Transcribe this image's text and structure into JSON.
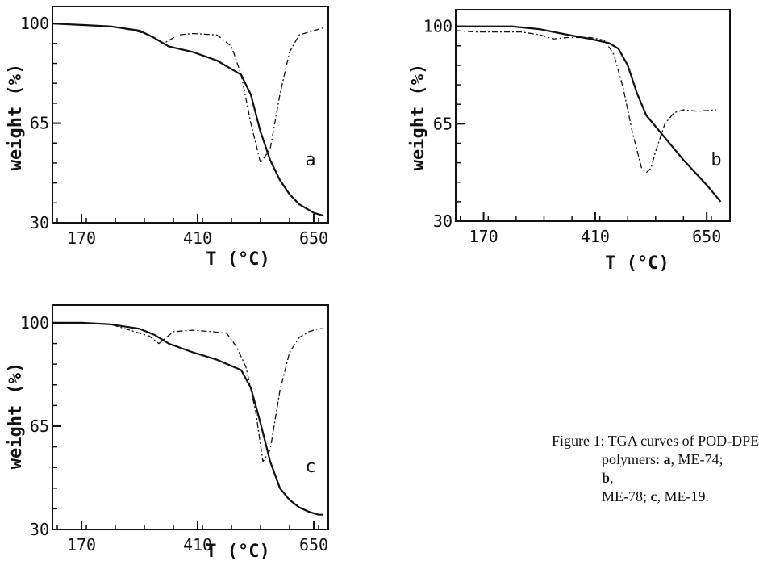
{
  "chart_data": [
    {
      "type": "line",
      "panel_label": "a",
      "xlabel": "T (°C)",
      "ylabel": "weight (%)",
      "xticks": [
        170,
        410,
        650
      ],
      "yticks": [
        30,
        65,
        100
      ],
      "xlim": [
        110,
        680
      ],
      "ylim": [
        30,
        106
      ],
      "series": [
        {
          "style": "solid",
          "x": [
            110,
            170,
            230,
            290,
            320,
            350,
            400,
            450,
            500,
            520,
            540,
            560,
            580,
            600,
            620,
            640,
            650,
            660,
            670
          ],
          "y": [
            100,
            99.5,
            99,
            97.5,
            95,
            92,
            90,
            87,
            82,
            75,
            62,
            52,
            45,
            40,
            36.5,
            34.5,
            33.5,
            33,
            32.5
          ]
        },
        {
          "style": "dashdot",
          "x": [
            110,
            170,
            230,
            280,
            310,
            340,
            370,
            400,
            450,
            480,
            500,
            520,
            540,
            560,
            580,
            600,
            620,
            640,
            660,
            670
          ],
          "y": [
            100,
            99.5,
            99,
            97.5,
            96,
            93,
            96,
            96.5,
            96,
            92,
            82,
            65,
            51,
            56,
            75,
            90,
            96,
            97,
            98,
            98.5
          ]
        }
      ]
    },
    {
      "type": "line",
      "panel_label": "b",
      "xlabel": "T (°C)",
      "ylabel": "weight (%)",
      "xticks": [
        170,
        410,
        650
      ],
      "yticks": [
        30,
        65,
        100
      ],
      "xlim": [
        110,
        700
      ],
      "ylim": [
        30,
        106
      ],
      "series": [
        {
          "style": "solid",
          "x": [
            110,
            170,
            230,
            290,
            350,
            400,
            440,
            460,
            480,
            500,
            520,
            560,
            600,
            650,
            680
          ],
          "y": [
            100,
            100,
            100,
            99,
            97,
            95.5,
            94,
            92,
            86,
            76,
            68,
            60,
            52,
            43,
            37
          ]
        },
        {
          "style": "dashdot",
          "x": [
            110,
            150,
            200,
            250,
            290,
            320,
            350,
            400,
            430,
            450,
            470,
            490,
            510,
            520,
            530,
            540,
            560,
            580,
            600,
            630,
            670
          ],
          "y": [
            98.5,
            98,
            98,
            98,
            97,
            95.5,
            96,
            96,
            95,
            90,
            78,
            62,
            49,
            47.5,
            49,
            55,
            65,
            69,
            70,
            69.5,
            70
          ]
        }
      ]
    },
    {
      "type": "line",
      "panel_label": "c",
      "xlabel": "T (°C)",
      "ylabel": "weight (%)",
      "xticks": [
        170,
        410,
        650
      ],
      "yticks": [
        30,
        65,
        100
      ],
      "xlim": [
        110,
        680
      ],
      "ylim": [
        30,
        106
      ],
      "series": [
        {
          "style": "solid",
          "x": [
            110,
            170,
            230,
            290,
            320,
            350,
            400,
            450,
            500,
            520,
            540,
            560,
            580,
            600,
            620,
            640,
            660,
            670
          ],
          "y": [
            100,
            100,
            99.5,
            98,
            96,
            93,
            90,
            87.5,
            84,
            78,
            66,
            53,
            44,
            40,
            37.5,
            36,
            35,
            35
          ]
        },
        {
          "style": "dashdot",
          "x": [
            110,
            170,
            230,
            280,
            310,
            330,
            360,
            400,
            440,
            470,
            490,
            510,
            530,
            545,
            560,
            580,
            600,
            620,
            640,
            660,
            670
          ],
          "y": [
            100,
            100,
            99.5,
            97,
            95.5,
            93,
            97,
            97.5,
            97,
            96.5,
            92,
            85,
            70,
            53,
            57,
            77,
            90,
            95,
            97,
            98,
            98
          ]
        }
      ]
    }
  ],
  "caption": {
    "line1": "Figure 1: TGA  curves  of POD-DPE",
    "line2_pre": "polymers: ",
    "line2_a": "a",
    "line2_mid": ", ME-74; ",
    "line2_b": "b",
    "line2_post": ",",
    "line3_pre": "ME-78;   ",
    "line3_c": "c",
    "line3_post": ",  ME-19."
  }
}
